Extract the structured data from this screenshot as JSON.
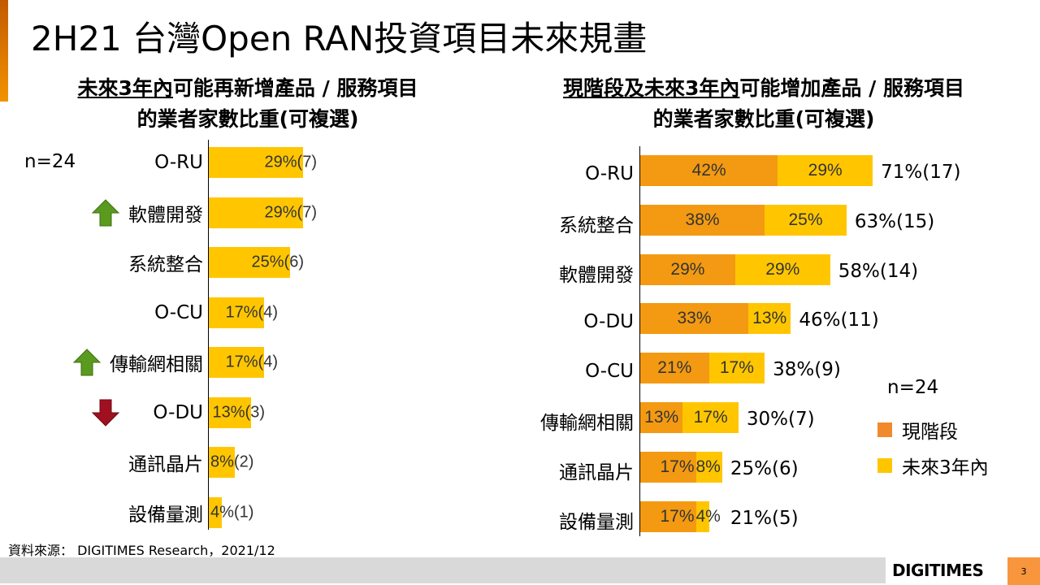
{
  "title": "2H21 台灣Open RAN投資項目未來規畫",
  "left_subtitle": {
    "underlined": "未來3年內",
    "rest": "可能再新增產品 / 服務項目",
    "line2": "的業者家數比重(可複選)"
  },
  "right_subtitle": {
    "underlined": "現階段及未來3年內",
    "rest": "可能增加產品 / 服務項目",
    "line2": "的業者家數比重(可複選)"
  },
  "source": "資料來源： DIGITIMES Research，2021/12",
  "logo": "DIGITIMES",
  "page_number": "3",
  "colors": {
    "current": "#f39a12",
    "future": "#ffc600"
  },
  "chart_data": [
    {
      "type": "bar",
      "orientation": "horizontal",
      "title": "未來3年內可能再新增產品 / 服務項目的業者家數比重(可複選)",
      "n_label": "n=24",
      "categories": [
        "O-RU",
        "軟體開發",
        "系統整合",
        "O-CU",
        "傳輸網相關",
        "O-DU",
        "通訊晶片",
        "設備量測"
      ],
      "values": [
        29,
        29,
        25,
        17,
        17,
        13,
        8,
        4
      ],
      "counts": [
        7,
        7,
        6,
        4,
        4,
        3,
        2,
        1
      ],
      "pct_labels": [
        "29%",
        "29%",
        "25%",
        "17%",
        "17%",
        "13%",
        "8%",
        "4%"
      ],
      "count_labels": [
        "(7)",
        "(7)",
        "(6)",
        "(4)",
        "(4)",
        "(3)",
        "(2)",
        "(1)"
      ],
      "trend": [
        "",
        "up",
        "",
        "",
        "up",
        "down",
        "",
        ""
      ],
      "xlim": [
        0,
        100
      ]
    },
    {
      "type": "bar",
      "orientation": "horizontal",
      "stacked": true,
      "title": "現階段及未來3年內可能增加產品 / 服務項目的業者家數比重(可複選)",
      "n_label": "n=24",
      "categories": [
        "O-RU",
        "系統整合",
        "軟體開發",
        "O-DU",
        "O-CU",
        "傳輸網相關",
        "通訊晶片",
        "設備量測"
      ],
      "series": [
        {
          "name": "現階段",
          "values": [
            42,
            38,
            29,
            33,
            21,
            13,
            17,
            17
          ],
          "labels": [
            "42%",
            "38%",
            "29%",
            "33%",
            "21%",
            "13%",
            "17%",
            "17%"
          ]
        },
        {
          "name": "未來3年內",
          "values": [
            29,
            25,
            29,
            13,
            17,
            17,
            8,
            4
          ],
          "labels": [
            "29%",
            "25%",
            "29%",
            "13%",
            "17%",
            "17%",
            "8%",
            "4%"
          ]
        }
      ],
      "totals": [
        "71%(17)",
        "63%(15)",
        "58%(14)",
        "46%(11)",
        "38%(9)",
        "30%(7)",
        "25%(6)",
        "21%(5)"
      ],
      "legend": [
        "現階段",
        "未來3年內"
      ],
      "legend_position": "right",
      "xlim": [
        0,
        100
      ]
    }
  ]
}
